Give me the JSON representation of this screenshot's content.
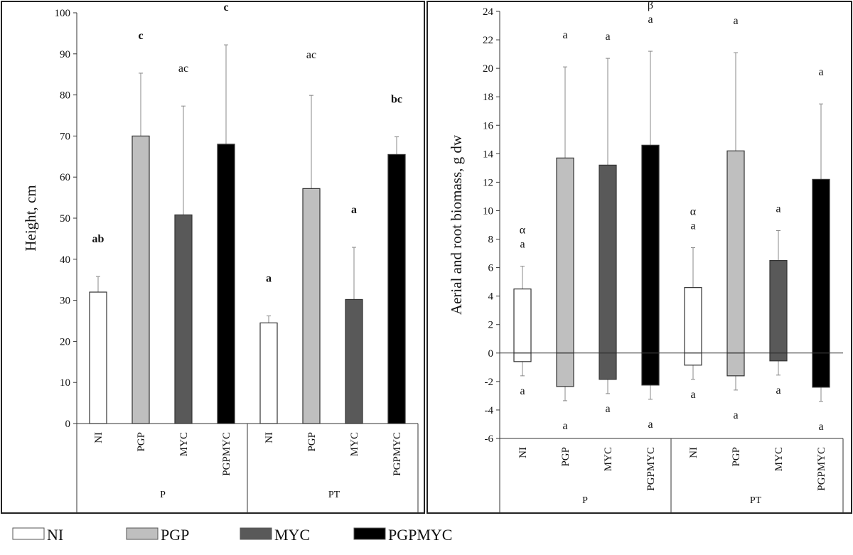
{
  "chart_data": [
    {
      "type": "bar",
      "ylabel": "Height, cm",
      "ylim": [
        0,
        100
      ],
      "yticks": [
        0,
        10,
        20,
        30,
        40,
        50,
        60,
        70,
        80,
        90,
        100
      ],
      "groups": [
        "P",
        "PT"
      ],
      "categories": [
        "NI",
        "PGP",
        "MYC",
        "PGPMYC",
        "NI",
        "PGP",
        "MYC",
        "PGPMYC"
      ],
      "values": [
        32,
        70,
        50.8,
        68,
        24.5,
        57.2,
        30.2,
        65.5
      ],
      "error_upper": [
        35.8,
        85.3,
        77.3,
        92.2,
        26.2,
        79.9,
        42.9,
        69.8
      ],
      "letters": [
        "ab",
        "c",
        "ac",
        "c",
        "a",
        "ac",
        "a",
        "bc"
      ],
      "letters_bold": [
        true,
        true,
        false,
        true,
        true,
        false,
        true,
        true
      ]
    },
    {
      "type": "bar",
      "ylabel": "Aerial and root biomass, g dw",
      "ylim": [
        -6,
        24
      ],
      "yticks": [
        -6,
        -4,
        -2,
        0,
        2,
        4,
        6,
        8,
        10,
        12,
        14,
        16,
        18,
        20,
        22,
        24
      ],
      "groups": [
        "P",
        "PT"
      ],
      "categories": [
        "NI",
        "PGP",
        "MYC",
        "PGPMYC",
        "NI",
        "PGP",
        "MYC",
        "PGPMYC"
      ],
      "series": [
        {
          "values": [
            4.5,
            13.7,
            13.2,
            14.6,
            4.6,
            14.2,
            6.5,
            12.2
          ],
          "error_upper": [
            6.1,
            20.1,
            20.7,
            21.2,
            7.4,
            21.1,
            8.6,
            17.5
          ],
          "letters": [
            "a",
            "a",
            "a",
            "a",
            "a",
            "a",
            "a",
            "a"
          ],
          "greek": [
            "α",
            "",
            "",
            "β",
            "α",
            "",
            "",
            ""
          ]
        },
        {
          "values": [
            -0.6,
            -2.35,
            -1.85,
            -2.25,
            -0.85,
            -1.6,
            -0.55,
            -2.4
          ],
          "error_lower": [
            -1.6,
            -3.35,
            -2.85,
            -3.25,
            -1.85,
            -2.6,
            -1.55,
            -3.4
          ],
          "letters": [
            "a",
            "a",
            "a",
            "a",
            "a",
            "a",
            "a",
            "a"
          ]
        }
      ]
    }
  ],
  "legend": [
    {
      "label": "NI",
      "color": "#ffffff"
    },
    {
      "label": "PGP",
      "color": "#bfbfbf"
    },
    {
      "label": "MYC",
      "color": "#595959"
    },
    {
      "label": "PGPMYC",
      "color": "#000000"
    }
  ]
}
